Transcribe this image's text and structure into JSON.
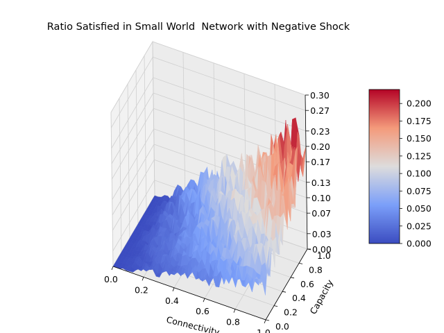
{
  "chart_data": {
    "type": "surface3d",
    "title": "Ratio Satisfied in Small World  Network with Negative Shock",
    "xlabel": "Connectivity",
    "ylabel": "Capacity",
    "zlabel": "",
    "xlim": [
      0.0,
      1.0
    ],
    "ylim": [
      0.0,
      1.0
    ],
    "zlim": [
      0.0,
      0.3
    ],
    "x_ticks": [
      "0.0",
      "0.2",
      "0.4",
      "0.6",
      "0.8",
      "1.0"
    ],
    "y_ticks": [
      "0.0",
      "0.2",
      "0.4",
      "0.6",
      "0.8",
      "1.0"
    ],
    "z_ticks": [
      "0.00",
      "0.03",
      "0.07",
      "0.10",
      "0.13",
      "0.17",
      "0.20",
      "0.23",
      "0.27",
      "0.30"
    ],
    "colormap": "coolwarm",
    "colorbar": {
      "range": [
        0.0,
        0.22
      ],
      "ticks": [
        "0.000",
        "0.025",
        "0.050",
        "0.075",
        "0.100",
        "0.125",
        "0.150",
        "0.175",
        "0.200"
      ]
    },
    "surface_profile": {
      "connectivity": [
        0.0,
        0.1,
        0.2,
        0.3,
        0.4,
        0.5,
        0.6,
        0.7,
        0.8,
        0.9,
        1.0
      ],
      "approx_ratio_satisfied": [
        0.0,
        0.01,
        0.03,
        0.05,
        0.07,
        0.09,
        0.11,
        0.13,
        0.15,
        0.17,
        0.19
      ]
    },
    "grid": true
  }
}
